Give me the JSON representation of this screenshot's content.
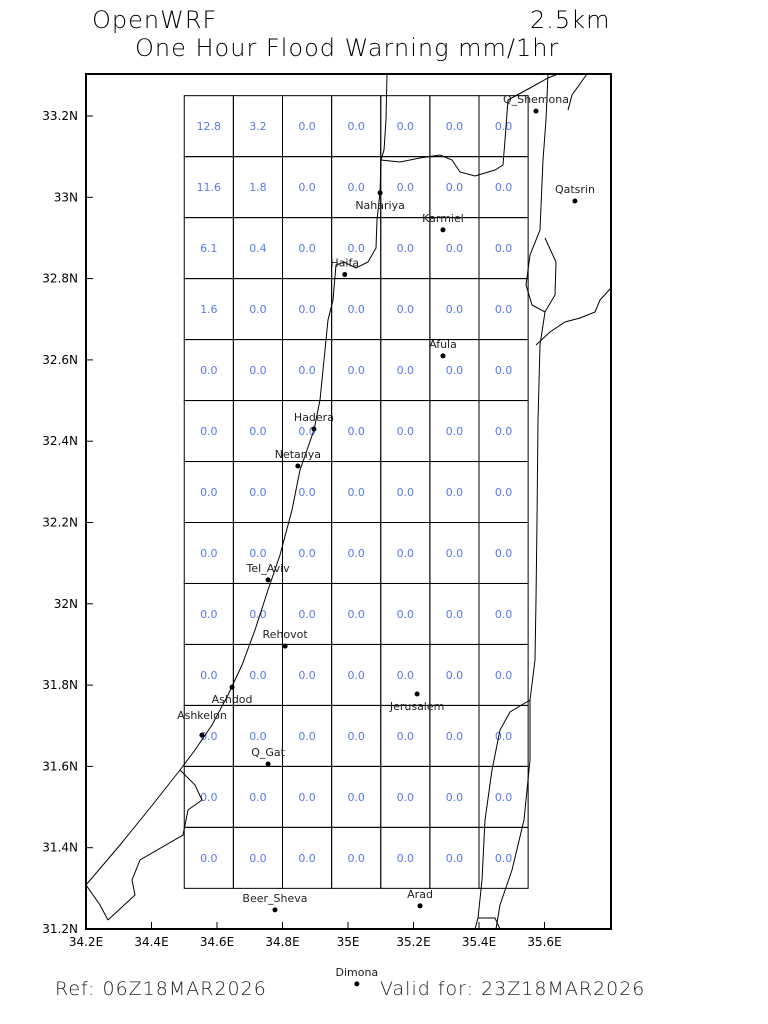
{
  "header": {
    "model": "OpenWRF",
    "resolution": "2.5km",
    "title": "One Hour Flood Warning mm/1hr"
  },
  "footer": {
    "ref": "Ref: 06Z18MAR2026",
    "valid": "Valid for: 23Z18MAR2026"
  },
  "map": {
    "lon_range": [
      34.2,
      35.8
    ],
    "lat_range": [
      31.2,
      33.3
    ],
    "lon_ticks": [
      "34.2E",
      "34.4E",
      "34.6E",
      "34.8E",
      "35E",
      "35.2E",
      "35.4E",
      "35.6E"
    ],
    "lat_ticks": [
      "31.2N",
      "31.4N",
      "31.6N",
      "31.8N",
      "32N",
      "32.2N",
      "32.4N",
      "32.6N",
      "32.8N",
      "33N",
      "33.2N"
    ],
    "value_color": "#5a78f0",
    "grid": {
      "lon_start": 34.5,
      "lat_start": 33.25,
      "step": 0.15,
      "cols": 7,
      "rows": 13,
      "values": [
        [
          "12.8",
          "3.2",
          "0.0",
          "0.0",
          "0.0",
          "0.0",
          "0.0"
        ],
        [
          "11.6",
          "1.8",
          "0.0",
          "0.0",
          "0.0",
          "0.0",
          "0.0"
        ],
        [
          "6.1",
          "0.4",
          "0.0",
          "0.0",
          "0.0",
          "0.0",
          "0.0"
        ],
        [
          "1.6",
          "0.0",
          "0.0",
          "0.0",
          "0.0",
          "0.0",
          "0.0"
        ],
        [
          "0.0",
          "0.0",
          "0.0",
          "0.0",
          "0.0",
          "0.0",
          "0.0"
        ],
        [
          "0.0",
          "0.0",
          "0.0",
          "0.0",
          "0.0",
          "0.0",
          "0.0"
        ],
        [
          "0.0",
          "0.0",
          "0.0",
          "0.0",
          "0.0",
          "0.0",
          "0.0"
        ],
        [
          "0.0",
          "0.0",
          "0.0",
          "0.0",
          "0.0",
          "0.0",
          "0.0"
        ],
        [
          "0.0",
          "0.0",
          "0.0",
          "0.0",
          "0.0",
          "0.0",
          "0.0"
        ],
        [
          "0.0",
          "0.0",
          "0.0",
          "0.0",
          "0.0",
          "0.0",
          "0.0"
        ],
        [
          "0.0",
          "0.0",
          "0.0",
          "0.0",
          "0.0",
          "0.0",
          "0.0"
        ],
        [
          "0.0",
          "0.0",
          "0.0",
          "0.0",
          "0.0",
          "0.0",
          "0.0"
        ],
        [
          "0.0",
          "0.0",
          "0.0",
          "0.0",
          "0.0",
          "0.0",
          "0.0"
        ]
      ]
    },
    "cities": [
      {
        "name": "Q_Shemona",
        "lon": 35.574,
        "lat": 33.212
      },
      {
        "name": "Qatsrin",
        "lon": 35.693,
        "lat": 32.991
      },
      {
        "name": "Nahariya",
        "lon": 35.098,
        "lat": 33.011
      },
      {
        "name": "Karmiel",
        "lon": 35.29,
        "lat": 32.92
      },
      {
        "name": "Haifa",
        "lon": 34.99,
        "lat": 32.81
      },
      {
        "name": "Afula",
        "lon": 35.29,
        "lat": 32.61
      },
      {
        "name": "Hadera",
        "lon": 34.896,
        "lat": 32.43
      },
      {
        "name": "Netanya",
        "lon": 34.847,
        "lat": 32.339
      },
      {
        "name": "Tel_Aviv",
        "lon": 34.756,
        "lat": 32.059
      },
      {
        "name": "Rehovot",
        "lon": 34.808,
        "lat": 31.896
      },
      {
        "name": "Ashdod",
        "lon": 34.646,
        "lat": 31.795
      },
      {
        "name": "Jerusalem",
        "lon": 35.211,
        "lat": 31.778
      },
      {
        "name": "Ashkelon",
        "lon": 34.554,
        "lat": 31.677
      },
      {
        "name": "Q_Gat",
        "lon": 34.756,
        "lat": 31.606
      },
      {
        "name": "Beer_Sheva",
        "lon": 34.777,
        "lat": 31.247
      },
      {
        "name": "Arad",
        "lon": 35.22,
        "lat": 31.257
      },
      {
        "name": "Dimona",
        "lon": 35.027,
        "lat": 31.065
      }
    ]
  }
}
